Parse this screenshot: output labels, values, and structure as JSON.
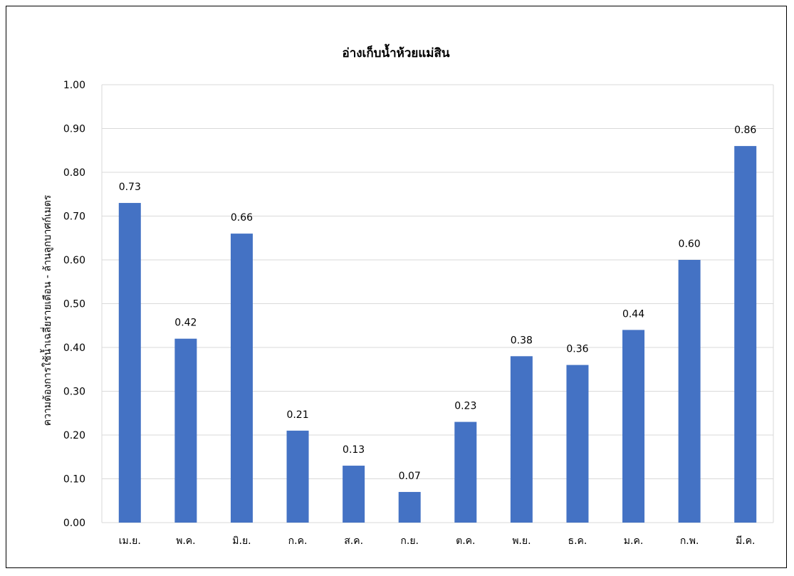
{
  "chart_data": {
    "type": "bar",
    "title": "อ่างเก็บน้ำห้วยแม่สิน",
    "xlabel": "",
    "ylabel": "ความต้องการใช้น้ำเฉลี่ยรายเดือน - ล้านลูกบาศก์เมตร",
    "categories": [
      "เม.ย.",
      "พ.ค.",
      "มิ.ย.",
      "ก.ค.",
      "ส.ค.",
      "ก.ย.",
      "ต.ค.",
      "พ.ย.",
      "ธ.ค.",
      "ม.ค.",
      "ก.พ.",
      "มี.ค."
    ],
    "values": [
      0.73,
      0.42,
      0.66,
      0.21,
      0.13,
      0.07,
      0.23,
      0.38,
      0.36,
      0.44,
      0.6,
      0.86
    ],
    "data_labels": [
      "0.73",
      "0.42",
      "0.66",
      "0.21",
      "0.13",
      "0.07",
      "0.23",
      "0.38",
      "0.36",
      "0.44",
      "0.60",
      "0.86"
    ],
    "ylim": [
      0,
      1.0
    ],
    "yticks": [
      "0.00",
      "0.10",
      "0.20",
      "0.30",
      "0.40",
      "0.50",
      "0.60",
      "0.70",
      "0.80",
      "0.90",
      "1.00"
    ],
    "grid": true,
    "legend": "none",
    "bar_color": "#4472c4"
  }
}
